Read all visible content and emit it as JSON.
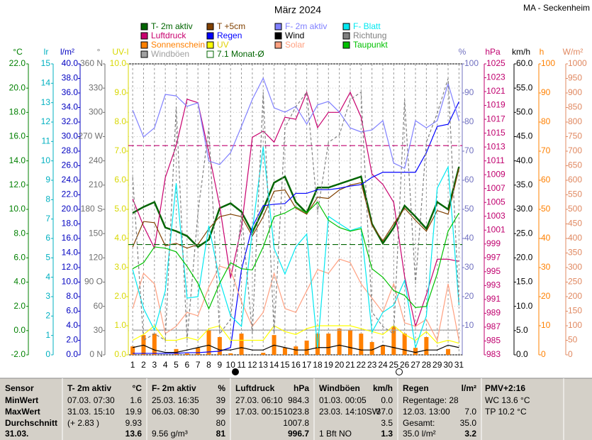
{
  "chart_data": {
    "type": "line",
    "title": "März 2024",
    "station": "MA - Seckenheim",
    "x": [
      1,
      2,
      3,
      4,
      5,
      6,
      7,
      8,
      9,
      10,
      11,
      12,
      13,
      14,
      15,
      16,
      17,
      18,
      19,
      20,
      21,
      22,
      23,
      24,
      25,
      26,
      27,
      28,
      29,
      30,
      31
    ],
    "xlim": [
      0.6,
      31.3
    ],
    "xticks": [
      1,
      2,
      3,
      4,
      5,
      6,
      7,
      8,
      9,
      10,
      11,
      12,
      13,
      14,
      15,
      16,
      17,
      18,
      19,
      20,
      21,
      22,
      23,
      24,
      25,
      26,
      27,
      28,
      29,
      30,
      31
    ],
    "grid": true,
    "axes": [
      {
        "label": "°C",
        "color": "#008000",
        "lim": [
          -2,
          22
        ],
        "ticks": [
          {
            "value": -2,
            "label": "-2.0"
          },
          {
            "value": 0,
            "label": "0.0"
          },
          {
            "value": 2,
            "label": "2.0"
          },
          {
            "value": 4,
            "label": "4.0"
          },
          {
            "value": 6,
            "label": "6.0"
          },
          {
            "value": 8,
            "label": "8.0"
          },
          {
            "value": 10,
            "label": "10.0"
          },
          {
            "value": 12,
            "label": "12.0"
          },
          {
            "value": 14,
            "label": "14.0"
          },
          {
            "value": 16,
            "label": "16.0"
          },
          {
            "value": 18,
            "label": "18.0"
          },
          {
            "value": 20,
            "label": "20.0"
          },
          {
            "value": 22,
            "label": "22.0"
          }
        ]
      },
      {
        "label": "lr",
        "color": "#00b0c0",
        "lim": [
          0,
          15
        ],
        "ticks": [
          0,
          1,
          2,
          3,
          4,
          5,
          6,
          7,
          8,
          9,
          10,
          11,
          12,
          13,
          14,
          15
        ]
      },
      {
        "label": "l/m²",
        "color": "#0000c0",
        "lim": [
          0,
          40
        ],
        "ticks": [
          {
            "value": 0,
            "label": "0.0"
          },
          {
            "value": 2,
            "label": "2.0"
          },
          {
            "value": 4,
            "label": "4.0"
          },
          {
            "value": 6,
            "label": "6.0"
          },
          {
            "value": 8,
            "label": "8.0"
          },
          {
            "value": 10,
            "label": "10.0"
          },
          {
            "value": 12,
            "label": "12.0"
          },
          {
            "value": 14,
            "label": "14.0"
          },
          {
            "value": 16,
            "label": "16.0"
          },
          {
            "value": 18,
            "label": "18.0"
          },
          {
            "value": 20,
            "label": "20.0"
          },
          {
            "value": 22,
            "label": "22.0"
          },
          {
            "value": 24,
            "label": "24.0"
          },
          {
            "value": 26,
            "label": "26.0"
          },
          {
            "value": 28,
            "label": "28.0"
          },
          {
            "value": 30,
            "label": "30.0"
          },
          {
            "value": 32,
            "label": "32.0"
          },
          {
            "value": 34,
            "label": "34.0"
          },
          {
            "value": 36,
            "label": "36.0"
          },
          {
            "value": 38,
            "label": "38.0"
          },
          {
            "value": 40,
            "label": "40.0"
          }
        ]
      },
      {
        "label": "°",
        "color": "#707070",
        "lim": [
          0,
          360
        ],
        "ticks": [
          {
            "value": 0,
            "label": "0 N"
          },
          30,
          60,
          {
            "value": 90,
            "label": "90 O"
          },
          120,
          150,
          {
            "value": 180,
            "label": "180 S"
          },
          210,
          240,
          {
            "value": 270,
            "label": "270 W"
          },
          300,
          330,
          {
            "value": 360,
            "label": "360 N"
          }
        ]
      },
      {
        "label": "UV-I",
        "color": "#d8d800",
        "lim": [
          0,
          10
        ],
        "ticks": [
          {
            "value": 0,
            "label": "0.0"
          },
          {
            "value": 1,
            "label": "1.0"
          },
          {
            "value": 2,
            "label": "2.0"
          },
          {
            "value": 3,
            "label": "3.0"
          },
          {
            "value": 4,
            "label": "4.0"
          },
          {
            "value": 5,
            "label": "5.0"
          },
          {
            "value": 6,
            "label": "6.0"
          },
          {
            "value": 7,
            "label": "7.0"
          },
          {
            "value": 8,
            "label": "8.0"
          },
          {
            "value": 9,
            "label": "9.0"
          },
          {
            "value": 10,
            "label": "10.0"
          }
        ]
      },
      {
        "label": "%",
        "color": "#7070c0",
        "lim": [
          0,
          100
        ],
        "ticks": [
          10,
          20,
          30,
          40,
          50,
          60,
          70,
          80,
          90,
          100
        ]
      },
      {
        "label": "hPa",
        "color": "#c0006e",
        "lim": [
          983,
          1025
        ],
        "ticks": [
          983,
          985,
          987,
          989,
          991,
          993,
          995,
          997,
          999,
          1001,
          1003,
          1005,
          1007,
          1009,
          1011,
          1013,
          1015,
          1017,
          1019,
          1021,
          1023,
          1025
        ]
      },
      {
        "label": "km/h",
        "color": "#000000",
        "lim": [
          0,
          60
        ],
        "ticks": [
          {
            "value": 0,
            "label": "0.0"
          },
          {
            "value": 5,
            "label": "5.0"
          },
          {
            "value": 10,
            "label": "10.0"
          },
          {
            "value": 15,
            "label": "15.0"
          },
          {
            "value": 20,
            "label": "20.0"
          },
          {
            "value": 25,
            "label": "25.0"
          },
          {
            "value": 30,
            "label": "30.0"
          },
          {
            "value": 35,
            "label": "35.0"
          },
          {
            "value": 40,
            "label": "40.0"
          },
          {
            "value": 45,
            "label": "45.0"
          },
          {
            "value": 50,
            "label": "50.0"
          },
          {
            "value": 55,
            "label": "55.0"
          },
          {
            "value": 60,
            "label": "60.0"
          }
        ]
      },
      {
        "label": "h",
        "color": "#ff8000",
        "lim": [
          0,
          100
        ],
        "ticks": [
          0,
          10,
          20,
          30,
          40,
          50,
          60,
          70,
          80,
          90,
          100
        ]
      },
      {
        "label": "W/m²",
        "color": "#e08860",
        "lim": [
          0,
          1000
        ],
        "ticks": [
          0,
          50,
          100,
          150,
          200,
          250,
          300,
          350,
          400,
          450,
          500,
          550,
          600,
          650,
          700,
          750,
          800,
          850,
          900,
          950,
          1000
        ]
      }
    ],
    "series": [
      {
        "name": "T- 2m aktiv",
        "color": "#006400",
        "axis": 0,
        "style": "thick",
        "values": [
          9.7,
          10.2,
          10.6,
          8.5,
          8.2,
          7.8,
          6.9,
          7.5,
          10.1,
          10.5,
          9.8,
          8.1,
          10.0,
          12.2,
          12.7,
          10.6,
          9.7,
          11.8,
          11.8,
          12.1,
          12.4,
          12.7,
          8.8,
          7.2,
          8.5,
          10.3,
          9.4,
          8.4,
          10.6,
          10.0,
          13.5
        ]
      },
      {
        "name": "Luftdruck",
        "color": "#c8006e",
        "axis": 6,
        "style": "line",
        "values": [
          1005.5,
          1001.6,
          998.4,
          1008.6,
          1013.2,
          1019.9,
          1019.4,
          1012.2,
          1004.5,
          994.1,
          1001.4,
          1014.4,
          1015.3,
          1013.7,
          1017.3,
          1017.0,
          1020.9,
          1015.8,
          1018.0,
          1018.0,
          1020.9,
          1017.3,
          1009.1,
          1007.6,
          1005.0,
          994.3,
          987.1,
          991.7,
          996.8,
          996.8,
          996.5
        ]
      },
      {
        "name": "Sonnenschein",
        "color": "#ff8000",
        "axis": 8,
        "style": "bar",
        "values": [
          2.9,
          6.8,
          7.3,
          0,
          2.0,
          0.5,
          2.4,
          8.5,
          6.1,
          0.5,
          7.3,
          0,
          0.7,
          6.8,
          2.4,
          2.9,
          4.9,
          7.3,
          7.3,
          9.0,
          8.5,
          7.3,
          4.4,
          3.2,
          9.8,
          7.3,
          2.4,
          6.1,
          0,
          2.0,
          0
        ]
      },
      {
        "name": "Windböen",
        "color": "#a0a0a0",
        "axis": 7,
        "style": "line",
        "values": [
          5.1,
          5.1,
          5.1,
          5.1,
          5.1,
          5.1,
          5.1,
          5.1,
          5.1,
          5.1,
          5.1,
          5.1,
          5.1,
          5.1,
          5.1,
          5.1,
          5.1,
          5.1,
          5.1,
          5.1,
          5.1,
          5.1,
          5.1,
          5.1,
          5.1,
          5.1,
          5.1,
          5.1,
          5.1,
          5.1,
          5.1
        ]
      },
      {
        "name": "T +5cm",
        "color": "#804000",
        "axis": 0,
        "style": "line",
        "values": [
          6.9,
          9.0,
          8.9,
          7.0,
          7.2,
          6.8,
          7.1,
          8.4,
          9.4,
          9.6,
          9.4,
          7.8,
          9.4,
          11.5,
          11.6,
          10.1,
          9.6,
          11.0,
          10.9,
          11.6,
          12.0,
          12.2,
          8.7,
          7.4,
          8.8,
          10.1,
          9.1,
          8.2,
          9.9,
          9.6,
          13.4
        ]
      },
      {
        "name": "Regen",
        "color": "#0000ff",
        "axis": 2,
        "style": "line",
        "values": [
          0.2,
          0.2,
          0.2,
          0.2,
          0.2,
          0.3,
          0.3,
          0.4,
          0.5,
          1.0,
          11.7,
          17.6,
          20.5,
          20.7,
          20.8,
          22.2,
          22.2,
          22.7,
          22.7,
          22.9,
          23.2,
          23.4,
          24.4,
          25.1,
          25.1,
          25.1,
          25.1,
          27.8,
          31.4,
          31.7,
          34.8
        ]
      },
      {
        "name": "UV",
        "color": "#ffff00",
        "axis": 4,
        "style": "line",
        "values": [
          0.5,
          0.7,
          1.0,
          0.5,
          0.5,
          0.6,
          0.5,
          0.9,
          1.0,
          0.5,
          0.5,
          0.5,
          0.5,
          1.0,
          0.8,
          0.7,
          0.9,
          1.0,
          1.0,
          1.0,
          1.0,
          0.9,
          0.8,
          0.7,
          1.0,
          0.7,
          0.5,
          0.8,
          0.4,
          0.5,
          0.4
        ]
      },
      {
        "name": "7.1 Monat-Ø",
        "color": "#006400",
        "style": "mean",
        "lines": [
          {
            "axis": 0,
            "value": 7.1,
            "color": "#006400"
          },
          {
            "axis": 6,
            "value": 1013.2,
            "color": "#c0006e"
          }
        ]
      },
      {
        "name": "F- 2m aktiv",
        "color": "#8080ff",
        "axis": 5,
        "style": "line",
        "values": [
          84.1,
          74.9,
          78.0,
          89.5,
          89.0,
          85.4,
          86.6,
          66.6,
          65.4,
          69.5,
          78.5,
          87.8,
          95.1,
          84.9,
          83.4,
          85.4,
          79.3,
          85.9,
          87.1,
          83.4,
          78.0,
          76.6,
          77.3,
          80.5,
          65.9,
          64.1,
          80.5,
          78.0,
          80.5,
          93.2,
          80.5
        ]
      },
      {
        "name": "Wind",
        "color": "#000000",
        "axis": 7,
        "style": "line",
        "values": [
          1.5,
          2,
          1,
          0.5,
          0.5,
          1,
          1.5,
          2,
          1,
          1,
          1.5,
          1,
          1,
          2,
          1.5,
          1,
          1,
          1.5,
          1.5,
          2,
          1.5,
          1,
          1,
          2,
          1.5,
          1,
          0.5,
          1,
          1,
          2,
          1.5
        ]
      },
      {
        "name": "Solar",
        "color": "#ffa080",
        "axis": 9,
        "style": "line",
        "values": [
          159,
          280,
          244,
          73,
          98,
          146,
          134,
          232,
          305,
          293,
          183,
          98,
          146,
          280,
          159,
          146,
          220,
          293,
          280,
          329,
          317,
          244,
          195,
          146,
          244,
          110,
          98,
          122,
          49,
          244,
          49
        ]
      },
      {
        "name": "F- Blatt",
        "color": "#00e8f0",
        "axis": 5,
        "style": "line",
        "values": [
          29.3,
          15.9,
          8.5,
          22.0,
          59.0,
          19.5,
          20.0,
          44.4,
          25.6,
          13.4,
          9.8,
          42.7,
          71.5,
          36.6,
          27.8,
          37.1,
          41.5,
          2.4,
          47.6,
          45.1,
          42.7,
          43.9,
          7.8,
          14.6,
          17.1,
          25.6,
          2.4,
          13.4,
          57.3,
          64.6,
          17.1
        ]
      },
      {
        "name": "Richtung",
        "color": "#808080",
        "axis": 3,
        "style": "dashed",
        "values": [
          220,
          18,
          26,
          18,
          307,
          18,
          176,
          281,
          26,
          44,
          176,
          26,
          325,
          26,
          281,
          307,
          325,
          176,
          263,
          272,
          316,
          325,
          53,
          35,
          26,
          316,
          88,
          263,
          299,
          342,
          61
        ]
      },
      {
        "name": "Taupunkt",
        "color": "#00c000",
        "axis": 0,
        "style": "line",
        "values": [
          5.1,
          5.6,
          6.9,
          6.8,
          6.5,
          5.3,
          3.9,
          1.8,
          3.9,
          5.6,
          5.1,
          5.0,
          6.9,
          9.4,
          9.7,
          10.2,
          9.7,
          10.6,
          9.1,
          8.5,
          8.2,
          8.4,
          5.1,
          4.4,
          3.3,
          2.9,
          1.9,
          2.0,
          4.7,
          8.2,
          9.7
        ]
      }
    ]
  },
  "table": {
    "rows": [
      [
        "Sensor",
        "T- 2m aktiv",
        "°C",
        "F- 2m aktiv",
        "%",
        "Luftdruck",
        "hPa",
        "Windböen",
        "km/h",
        "Regen",
        "l/m²",
        "PMV+2:16"
      ],
      [
        "MinWert",
        "07.03.  07:30",
        "1.6",
        "25.03.  16:35",
        "39",
        "27.03.  06:10",
        "984.3",
        "01.03.  00:05",
        "0.0",
        "Regentage: 28",
        null,
        "WC 13.6 °C"
      ],
      [
        "MaxWert",
        "31.03.  15:10",
        "19.9",
        "06.03.  08:30",
        "99",
        "17.03.  00:15",
        "1023.8",
        "23.03.  14:10SW",
        "37.0",
        "12.03.  13:00",
        "7.0",
        "TP 10.2 °C"
      ],
      [
        "Durchschnitt",
        "(+ 2.83 )",
        "9.93",
        null,
        "80",
        null,
        "1007.8",
        null,
        "3.5",
        "Gesamt:",
        "35.0",
        null
      ],
      [
        "31.03.",
        null,
        "13.6",
        "9.56 g/m³",
        "81",
        null,
        "996.7",
        "1 Bft NO",
        "1.3",
        "35.0 l/m²",
        "3.2",
        null
      ]
    ]
  }
}
